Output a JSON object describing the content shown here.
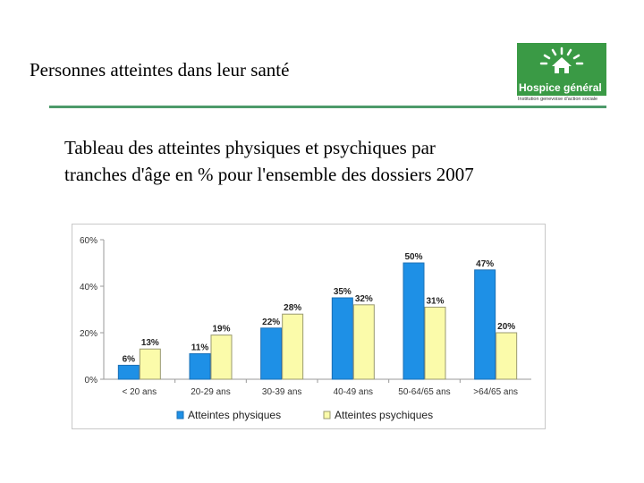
{
  "page": {
    "title": "Personnes atteintes dans leur santé",
    "subtitle_line1": "Tableau des atteintes physiques et psychiques par",
    "subtitle_line2": "tranches d'âge en % pour l'ensemble des dossiers 2007"
  },
  "logo": {
    "name": "Hospice général",
    "tagline": "Institution genevoise d'action sociale",
    "icon": "house-sun-icon"
  },
  "colors": {
    "accent_green": "#4c9a6a",
    "series_physiques": "#1e90e6",
    "series_psychiques": "#fbfbaa"
  },
  "chart_data": {
    "type": "bar",
    "title": "",
    "xlabel": "",
    "ylabel": "",
    "ylim": [
      0,
      60
    ],
    "yticks": [
      "0%",
      "20%",
      "40%",
      "60%"
    ],
    "ytick_values": [
      0,
      20,
      40,
      60
    ],
    "categories": [
      "< 20 ans",
      "20-29 ans",
      "30-39 ans",
      "40-49 ans",
      "50-64/65 ans",
      ">64/65 ans"
    ],
    "series": [
      {
        "name": "Atteintes physiques",
        "values": [
          6,
          11,
          22,
          35,
          50,
          47
        ],
        "labels": [
          "6%",
          "11%",
          "22%",
          "35%",
          "50%",
          "47%"
        ]
      },
      {
        "name": "Atteintes psychiques",
        "values": [
          13,
          19,
          28,
          32,
          31,
          20
        ],
        "labels": [
          "13%",
          "19%",
          "28%",
          "32%",
          "31%",
          "20%"
        ]
      }
    ],
    "legend": "bottom",
    "grid": false
  }
}
